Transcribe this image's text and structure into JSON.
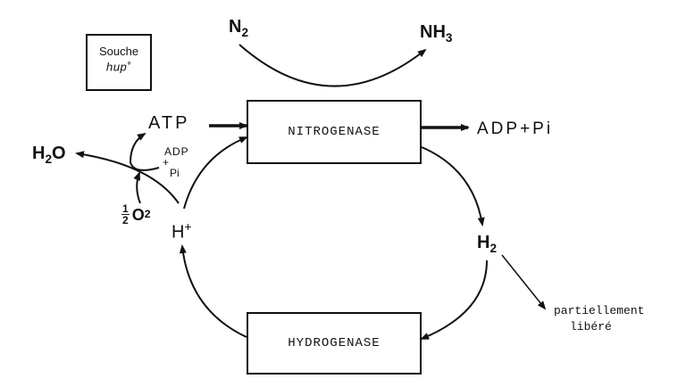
{
  "strain_box": {
    "line1": "Souche",
    "line2": "hup",
    "sup": "+"
  },
  "nitrogenase": "NITROGENASE",
  "hydrogenase": "HYDROGENASE",
  "n2": {
    "base": "N",
    "sub": "2"
  },
  "nh3": {
    "base": "NH",
    "sub": "3"
  },
  "atp": "ATP",
  "adp_pi_out": "ADP+Pi",
  "adp_small": {
    "top": "ADP",
    "plus": "+",
    "bottom": "Pi"
  },
  "h2o": {
    "base": "H",
    "sub": "2",
    "tail": "O"
  },
  "half_o2": {
    "num": "1",
    "den": "2",
    "base": "O",
    "sub": "2"
  },
  "h_plus": {
    "base": "H",
    "sup": "+"
  },
  "h2": {
    "base": "H",
    "sub": "2"
  },
  "released": {
    "line1": "partiellement",
    "line2": "libéré"
  }
}
